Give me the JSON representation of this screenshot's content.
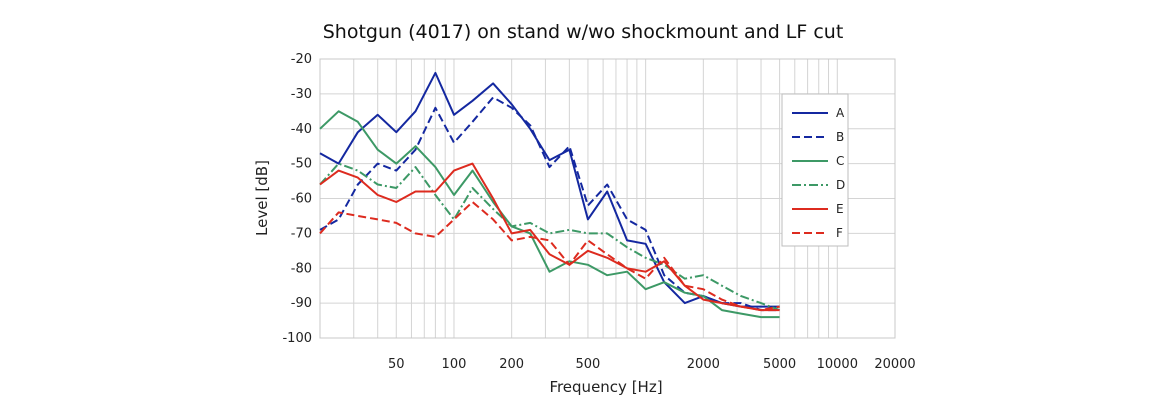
{
  "chart_data": {
    "type": "line",
    "title": "Shotgun (4017) on stand w/wo shockmount and LF cut",
    "xlabel": "Frequency [Hz]",
    "ylabel": "Level [dB]",
    "xscale": "log",
    "xlim": [
      20,
      20000
    ],
    "ylim": [
      -100,
      -20
    ],
    "xticks": [
      50,
      100,
      200,
      500,
      2000,
      5000,
      10000,
      20000
    ],
    "xtick_labels": [
      "50",
      "100",
      "200",
      "500",
      "2000",
      "5000",
      "10000",
      "20000"
    ],
    "yticks": [
      -100,
      -90,
      -80,
      -70,
      -60,
      -50,
      -40,
      -30,
      -20
    ],
    "ytick_labels": [
      "-100",
      "-90",
      "-80",
      "-70",
      "-60",
      "-50",
      "-40",
      "-30",
      "-20"
    ],
    "grid": true,
    "legend_position": "right",
    "series": [
      {
        "name": "A",
        "color": "#1428a0",
        "dash": "solid",
        "x": [
          20,
          25,
          31.5,
          40,
          50,
          63,
          80,
          100,
          125,
          160,
          200,
          250,
          315,
          400,
          500,
          630,
          800,
          1000,
          1250,
          1600,
          2000,
          2500,
          3150,
          4000,
          5000
        ],
        "y": [
          -47,
          -50,
          -41,
          -36,
          -41,
          -35,
          -24,
          -36,
          -32,
          -27,
          -33,
          -40,
          -49,
          -46,
          -66,
          -58,
          -72,
          -73,
          -84,
          -90,
          -88,
          -90,
          -91,
          -91,
          -91
        ]
      },
      {
        "name": "B",
        "color": "#1428a0",
        "dash": "dashed",
        "x": [
          20,
          25,
          31.5,
          40,
          50,
          63,
          80,
          100,
          125,
          160,
          200,
          250,
          315,
          400,
          500,
          630,
          800,
          1000,
          1250,
          1600,
          2000,
          2500,
          3150,
          4000,
          5000
        ],
        "y": [
          -69,
          -66,
          -56,
          -50,
          -52,
          -46,
          -34,
          -44,
          -38,
          -31,
          -34,
          -39,
          -51,
          -45,
          -62,
          -56,
          -66,
          -69,
          -82,
          -87,
          -88,
          -90,
          -90,
          -92,
          -92
        ]
      },
      {
        "name": "C",
        "color": "#3d9966",
        "dash": "solid",
        "x": [
          20,
          25,
          31.5,
          40,
          50,
          63,
          80,
          100,
          125,
          160,
          200,
          250,
          315,
          400,
          500,
          630,
          800,
          1000,
          1250,
          1600,
          2000,
          2500,
          3150,
          4000,
          5000
        ],
        "y": [
          -40,
          -35,
          -38,
          -46,
          -50,
          -45,
          -51,
          -59,
          -52,
          -61,
          -68,
          -70,
          -81,
          -78,
          -79,
          -82,
          -81,
          -86,
          -84,
          -87,
          -88,
          -92,
          -93,
          -94,
          -94
        ]
      },
      {
        "name": "D",
        "color": "#3d9966",
        "dash": "dashdot",
        "x": [
          20,
          25,
          31.5,
          40,
          50,
          63,
          80,
          100,
          125,
          160,
          200,
          250,
          315,
          400,
          500,
          630,
          800,
          1000,
          1250,
          1600,
          2000,
          2500,
          3150,
          4000,
          5000
        ],
        "y": [
          -56,
          -50,
          -52,
          -56,
          -57,
          -51,
          -59,
          -66,
          -57,
          -63,
          -68,
          -67,
          -70,
          -69,
          -70,
          -70,
          -74,
          -77,
          -79,
          -83,
          -82,
          -85,
          -88,
          -90,
          -92
        ]
      },
      {
        "name": "E",
        "color": "#dd2b1f",
        "dash": "solid",
        "x": [
          20,
          25,
          31.5,
          40,
          50,
          63,
          80,
          100,
          125,
          160,
          200,
          250,
          315,
          400,
          500,
          630,
          800,
          1000,
          1250,
          1600,
          2000,
          2500,
          3150,
          4000,
          5000
        ],
        "y": [
          -56,
          -52,
          -54,
          -59,
          -61,
          -58,
          -58,
          -52,
          -50,
          -60,
          -70,
          -69,
          -76,
          -79,
          -75,
          -77,
          -80,
          -81,
          -78,
          -85,
          -89,
          -90,
          -91,
          -92,
          -92
        ]
      },
      {
        "name": "F",
        "color": "#dd2b1f",
        "dash": "dashed",
        "x": [
          20,
          25,
          31.5,
          40,
          50,
          63,
          80,
          100,
          125,
          160,
          200,
          250,
          315,
          400,
          500,
          630,
          800,
          1000,
          1250,
          1600,
          2000,
          2500,
          3150,
          4000,
          5000
        ],
        "y": [
          -70,
          -64,
          -65,
          -66,
          -67,
          -70,
          -71,
          -66,
          -61,
          -66,
          -72,
          -71,
          -72,
          -79,
          -72,
          -76,
          -80,
          -83,
          -77,
          -85,
          -86,
          -89,
          -91,
          -92,
          -91
        ]
      }
    ]
  }
}
